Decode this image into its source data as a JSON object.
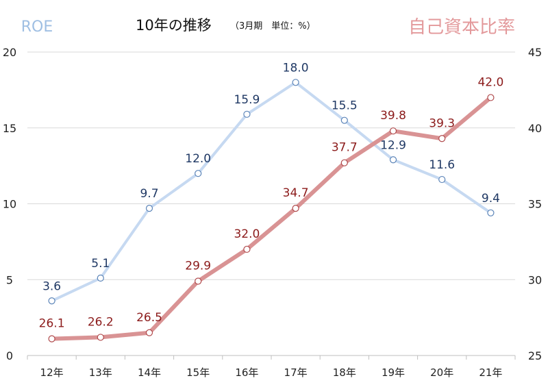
{
  "header": {
    "title": "10年の推移",
    "note": "（3月期　単位：%）"
  },
  "chart_data": {
    "type": "line",
    "title": "10年の推移",
    "categories": [
      "12年",
      "13年",
      "14年",
      "15年",
      "16年",
      "17年",
      "18年",
      "19年",
      "20年",
      "21年"
    ],
    "series": [
      {
        "name": "ROE",
        "axis": "left",
        "color": "#c6d9f1",
        "label_color": "#1f3864",
        "values": [
          3.6,
          5.1,
          9.7,
          12.0,
          15.9,
          18.0,
          15.5,
          12.9,
          11.6,
          9.4
        ],
        "labels": [
          "3.6",
          "5.1",
          "9.7",
          "12.0",
          "15.9",
          "18.0",
          "15.5",
          "12.9",
          "11.6",
          "9.4"
        ]
      },
      {
        "name": "自己資本比率",
        "axis": "right",
        "color": "#d99394",
        "label_color": "#8b1a1a",
        "values": [
          26.1,
          26.2,
          26.5,
          29.9,
          32.0,
          34.7,
          37.7,
          39.8,
          39.3,
          42.0
        ],
        "labels": [
          "26.1",
          "26.2",
          "26.5",
          "29.9",
          "32.0",
          "34.7",
          "37.7",
          "39.8",
          "39.3",
          "42.0"
        ]
      }
    ],
    "y_left": {
      "ylim": [
        0,
        20
      ],
      "ticks": [
        "0",
        "5",
        "10",
        "15",
        "20"
      ]
    },
    "y_right": {
      "ylim": [
        25,
        45
      ],
      "ticks": [
        "25",
        "30",
        "35",
        "40",
        "45"
      ]
    },
    "grid": true,
    "legend": "top"
  }
}
